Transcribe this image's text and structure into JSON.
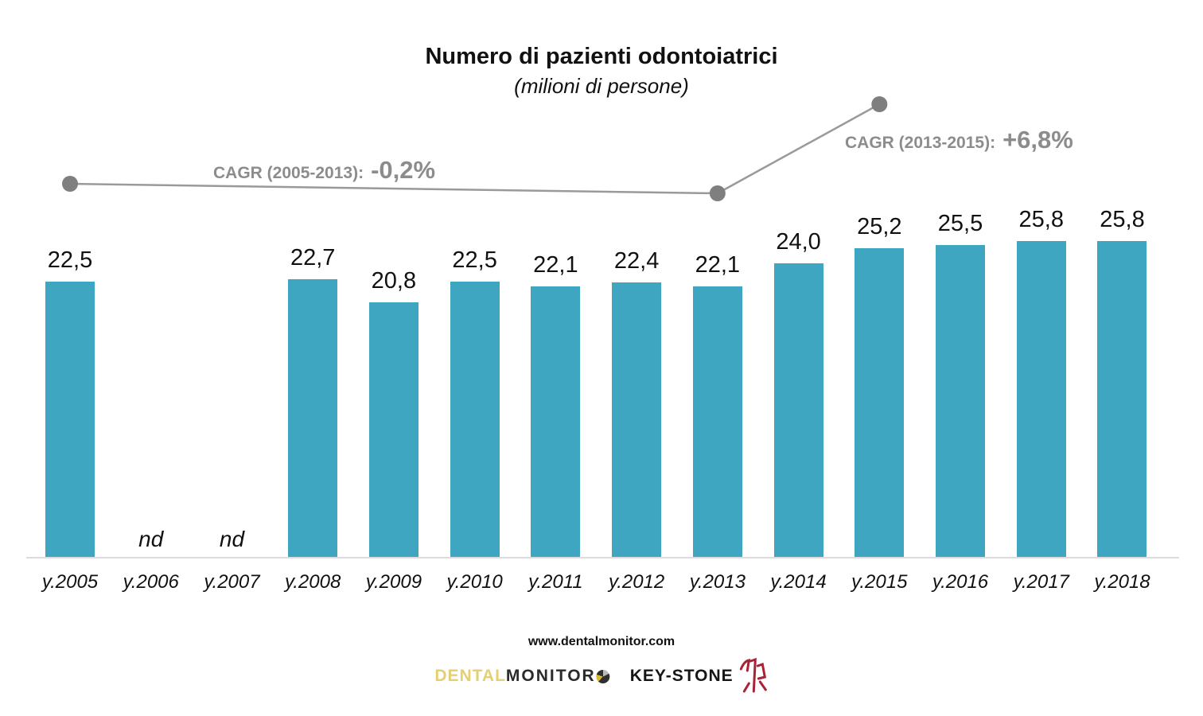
{
  "header": {
    "title": "Numero di pazienti odontoiatrici",
    "subtitle": "(milioni di persone)"
  },
  "chart_data": {
    "type": "bar",
    "title": "Numero di pazienti odontoiatrici",
    "subtitle": "(milioni di persone)",
    "categories": [
      "y.2005",
      "y.2006",
      "y.2007",
      "y.2008",
      "y.2009",
      "y.2010",
      "y.2011",
      "y.2012",
      "y.2013",
      "y.2014",
      "y.2015",
      "y.2016",
      "y.2017",
      "y.2018"
    ],
    "values": [
      22.5,
      null,
      null,
      22.7,
      20.8,
      22.5,
      22.1,
      22.4,
      22.1,
      24.0,
      25.2,
      25.5,
      25.8,
      25.8
    ],
    "value_labels": [
      "22,5",
      "nd",
      "nd",
      "22,7",
      "20,8",
      "22,5",
      "22,1",
      "22,4",
      "22,1",
      "24,0",
      "25,2",
      "25,5",
      "25,8",
      "25,8"
    ],
    "null_label": "nd",
    "bar_color": "#3EA6C1",
    "xlabel": "",
    "ylabel": "",
    "ylim": [
      0,
      27
    ],
    "grid": false,
    "legend": false,
    "annotations": [
      {
        "label": "CAGR (2005-2013):",
        "value": "-0,2%",
        "from": "y.2005",
        "to": "y.2013"
      },
      {
        "label": "CAGR (2013-2015):",
        "value": "+6,8%",
        "from": "y.2013",
        "to": "y.2015"
      }
    ]
  },
  "footer": {
    "website": "www.dentalmonitor.com",
    "logos": [
      {
        "name": "DENTAL MONITOR",
        "part1": "DENTAL",
        "part2": "MONITOR"
      },
      {
        "name": "KEY-STONE",
        "text": "KEY-STONE"
      }
    ]
  },
  "colors": {
    "bar": "#3EA6C1",
    "annotation_text": "#8C8C8C",
    "annotation_line": "#9A9A9A",
    "annotation_dot": "#7F7F7F",
    "baseline": "#DCDCDC"
  }
}
